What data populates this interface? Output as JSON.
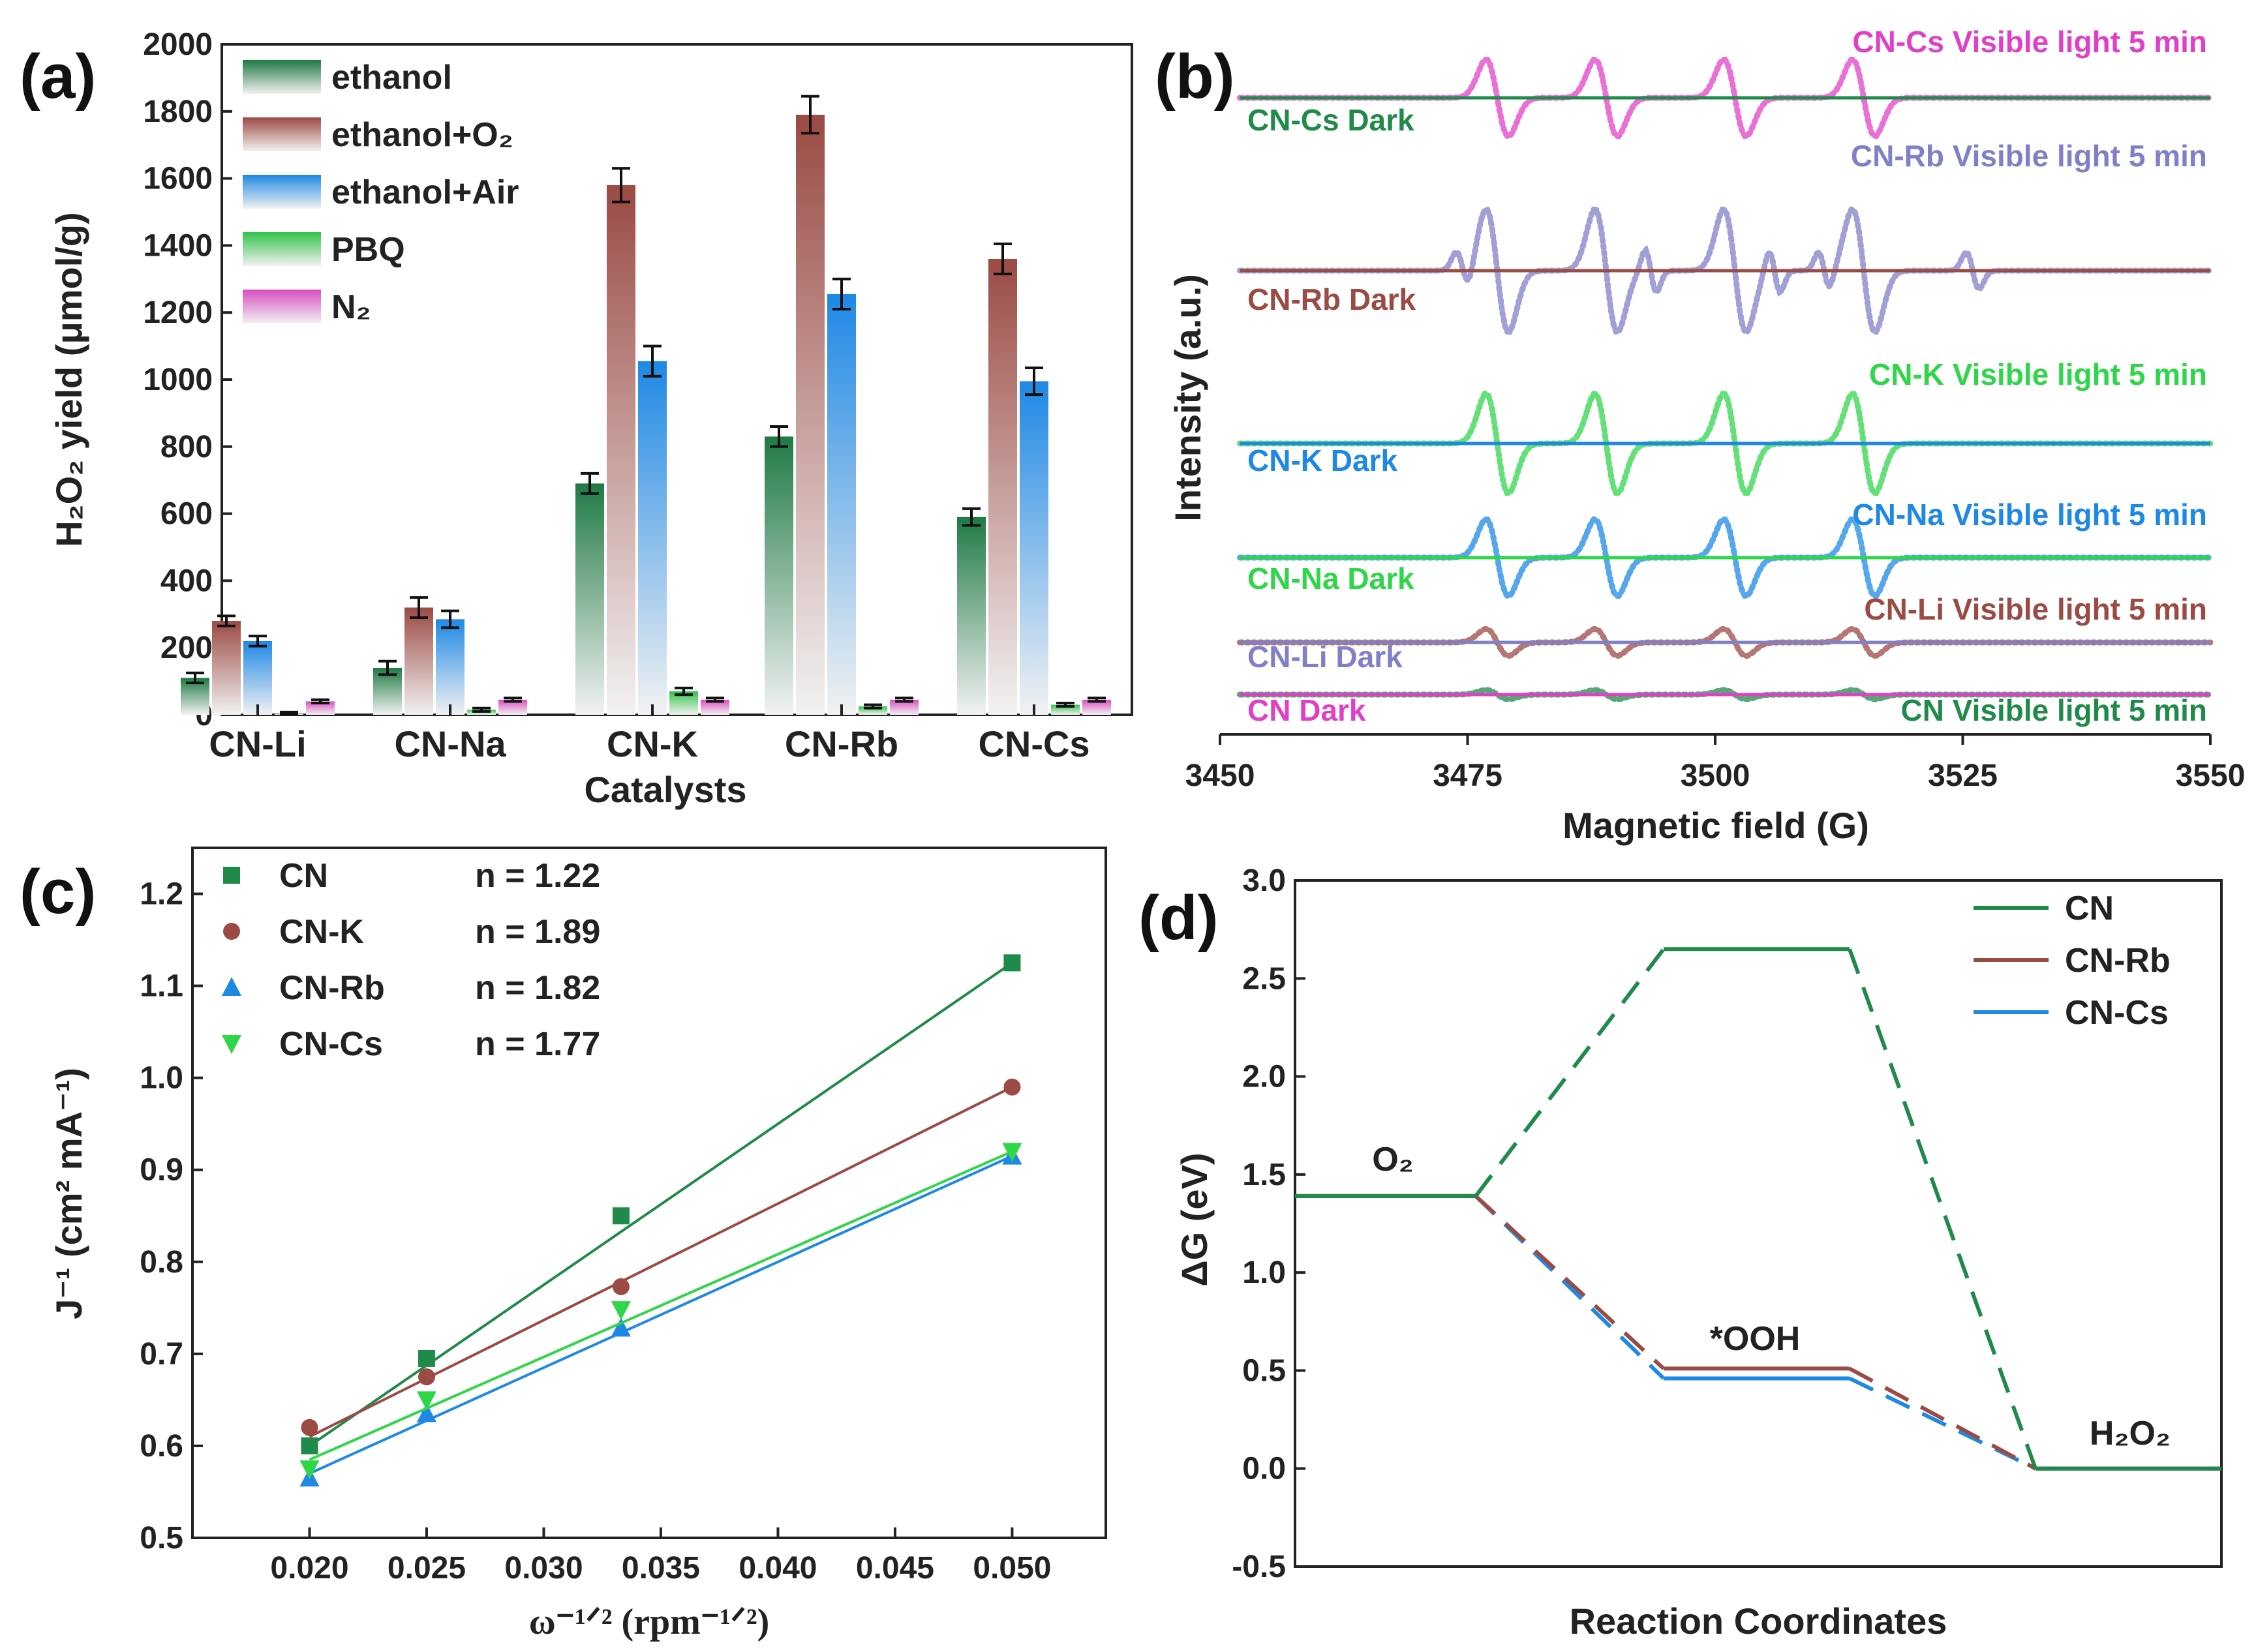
{
  "colors": {
    "ethanol": "#1f7a45",
    "ethanol_o2": "#9b4a44",
    "ethanol_air": "#1e88e5",
    "pbq": "#33c24a",
    "n2": "#d94fc0",
    "cn": "#1f8a4a",
    "cn_k": "#9b4a44",
    "cn_rb": "#1e88e5",
    "cn_cs": "#2fd64a",
    "epr_cs": "#e040c8",
    "epr_rb": "#8080c8",
    "epr_k": "#2fd64a",
    "epr_na": "#1e88e5",
    "epr_li": "#9b4a44",
    "epr_cn": "#1f8a4a",
    "dark_green": "#1f8a4a",
    "dark_brown": "#9b4a44",
    "dark_blue": "#1e88e5",
    "dark_lime": "#2fd64a",
    "dark_lavender": "#8080c8",
    "dark_magenta": "#e040c8"
  },
  "chart_data": [
    {
      "panel": "(a)",
      "type": "bar",
      "ylabel": "H₂O₂ yield (μmol/g)",
      "xlabel": "Catalysts",
      "ylim": [
        0,
        2000
      ],
      "yticks": [
        0,
        200,
        400,
        600,
        800,
        1000,
        1200,
        1400,
        1600,
        1800,
        2000
      ],
      "categories": [
        "CN-Li",
        "CN-Na",
        "CN-K",
        "CN-Rb",
        "CN-Cs"
      ],
      "series": [
        {
          "name": "ethanol",
          "values": [
            110,
            140,
            690,
            830,
            590
          ],
          "errors": [
            15,
            20,
            30,
            30,
            25
          ]
        },
        {
          "name": "ethanol+O₂",
          "values": [
            280,
            320,
            1580,
            1790,
            1360
          ],
          "errors": [
            15,
            30,
            50,
            55,
            45
          ]
        },
        {
          "name": "ethanol+Air",
          "values": [
            220,
            285,
            1055,
            1255,
            995
          ],
          "errors": [
            15,
            25,
            45,
            45,
            40
          ]
        },
        {
          "name": "PBQ",
          "values": [
            5,
            15,
            70,
            25,
            30
          ],
          "errors": [
            3,
            5,
            10,
            5,
            5
          ]
        },
        {
          "name": "N₂",
          "values": [
            40,
            45,
            45,
            45,
            45
          ],
          "errors": [
            5,
            5,
            5,
            5,
            5
          ]
        }
      ]
    },
    {
      "panel": "(b)",
      "type": "line",
      "ylabel": "Intensity (a.u.)",
      "xlabel": "Magnetic field (G)",
      "xlim": [
        3450,
        3550
      ],
      "xticks": [
        3450,
        3475,
        3500,
        3525,
        3550
      ],
      "line_centers": [
        3478,
        3489,
        3502,
        3515
      ],
      "spectra": [
        {
          "light": "CN-Cs Visible light 5 min",
          "dark": "CN-Cs Dark",
          "amp": 1.0,
          "hyperfine": false
        },
        {
          "light": "CN-Rb Visible light 5 min",
          "dark": "CN-Rb Dark",
          "amp": 1.6,
          "hyperfine": true
        },
        {
          "light": "CN-K Visible light 5 min",
          "dark": "CN-K Dark",
          "amp": 1.3,
          "hyperfine": false
        },
        {
          "light": "CN-Na Visible light 5 min",
          "dark": "CN-Na Dark",
          "amp": 1.0,
          "hyperfine": false
        },
        {
          "light": "CN-Li Visible light 5 min",
          "dark": "CN-Li Dark",
          "amp": 0.35,
          "hyperfine": false
        },
        {
          "light": "CN Visible light 5 min",
          "dark": "CN Dark",
          "amp": 0.12,
          "hyperfine": false
        }
      ]
    },
    {
      "panel": "(c)",
      "type": "scatter",
      "xlabel": "ω⁻¹ᐟ² (rpm⁻¹ᐟ²)",
      "ylabel": "J⁻¹ (cm² mA⁻¹)",
      "xlim": [
        0.015,
        0.054
      ],
      "ylim": [
        0.5,
        1.25
      ],
      "xticks": [
        0.02,
        0.025,
        0.03,
        0.035,
        0.04,
        0.045,
        0.05
      ],
      "yticks": [
        0.5,
        0.6,
        0.7,
        0.8,
        0.9,
        1.0,
        1.1,
        1.2
      ],
      "x": [
        0.02,
        0.025,
        0.0333,
        0.05
      ],
      "series": [
        {
          "name": "CN",
          "n_label": "n = 1.22",
          "marker": "square",
          "values": [
            0.6,
            0.695,
            0.85,
            1.125
          ],
          "fit": [
            0.6,
            1.125
          ]
        },
        {
          "name": "CN-K",
          "n_label": "n = 1.89",
          "marker": "circle",
          "values": [
            0.62,
            0.675,
            0.773,
            0.99
          ],
          "fit": [
            0.61,
            0.99
          ]
        },
        {
          "name": "CN-Rb",
          "n_label": "n = 1.82",
          "marker": "triangle-up",
          "values": [
            0.565,
            0.635,
            0.728,
            0.915
          ],
          "fit": [
            0.57,
            0.915
          ]
        },
        {
          "name": "CN-Cs",
          "n_label": "n = 1.77",
          "marker": "triangle-down",
          "values": [
            0.575,
            0.65,
            0.748,
            0.92
          ],
          "fit": [
            0.585,
            0.92
          ]
        }
      ]
    },
    {
      "panel": "(d)",
      "type": "line",
      "ylabel": "ΔG (eV)",
      "xlabel": "Reaction Coordinates",
      "ylim": [
        -0.5,
        3.0
      ],
      "yticks": [
        -0.5,
        0.0,
        0.5,
        1.0,
        1.5,
        2.0,
        2.5,
        3.0
      ],
      "annotations": [
        "O₂",
        "*OOH",
        "H₂O₂"
      ],
      "series": [
        {
          "name": "CN",
          "levels": [
            1.39,
            2.65,
            0.0
          ]
        },
        {
          "name": "CN-Rb",
          "levels": [
            1.39,
            0.51,
            0.0
          ]
        },
        {
          "name": "CN-Cs",
          "levels": [
            1.39,
            0.46,
            0.0
          ]
        }
      ]
    }
  ]
}
